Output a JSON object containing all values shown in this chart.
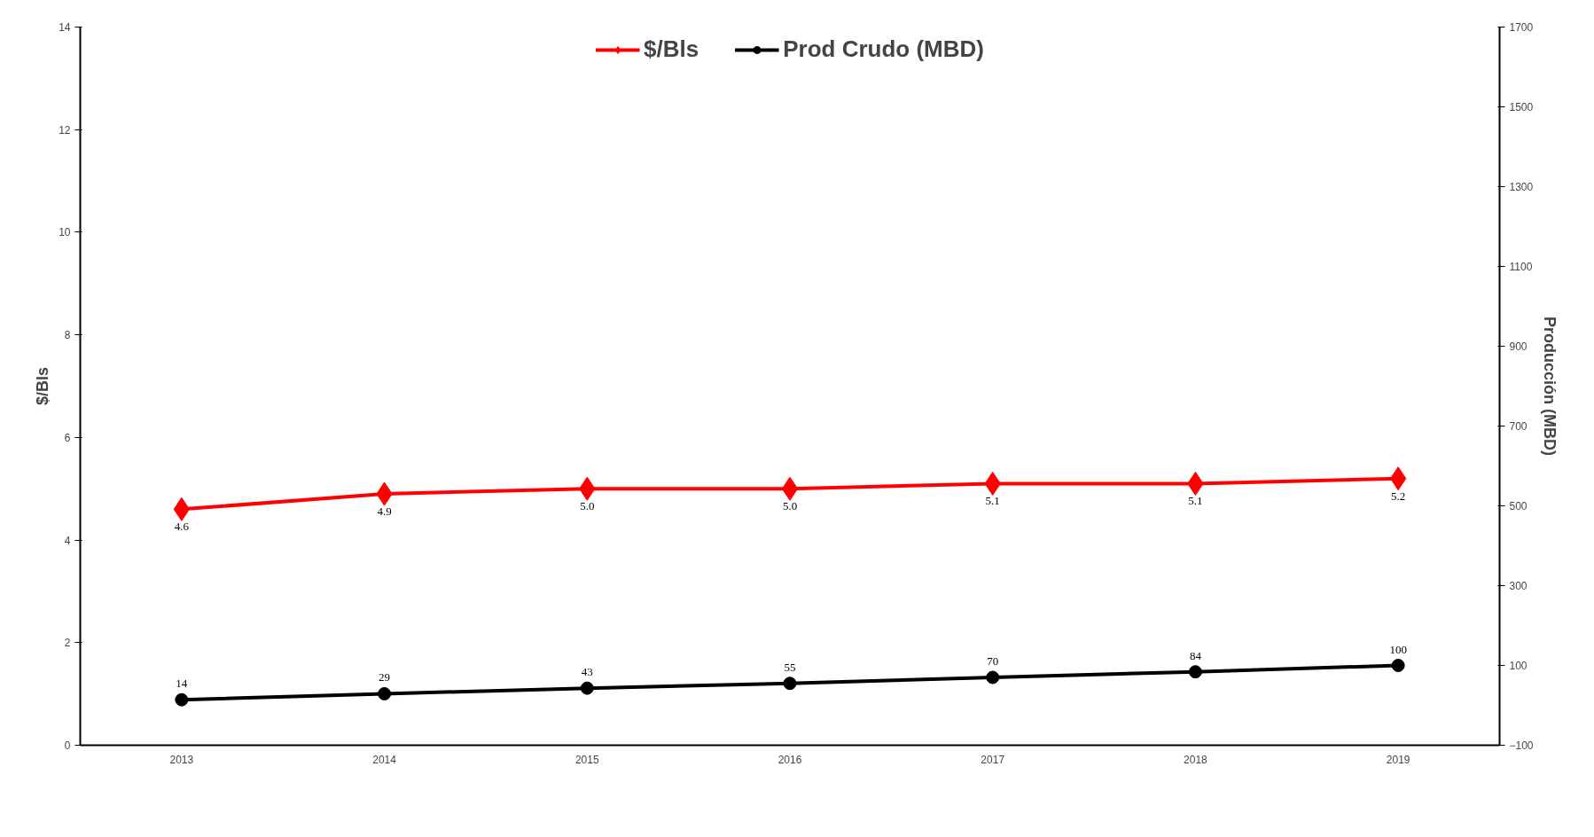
{
  "chart_data": {
    "type": "line",
    "ylabel": "$/Bls",
    "y2label": "Producción (MBD)",
    "categories": [
      "2013",
      "2014",
      "2015",
      "2016",
      "2017",
      "2018",
      "2019"
    ],
    "series": [
      {
        "name": "$/Bls",
        "color": "#ff0000",
        "marker": "diamond",
        "values": [
          4.6,
          4.9,
          5.0,
          5.0,
          5.1,
          5.1,
          5.2
        ],
        "value_labels": [
          "4.6",
          "4.9",
          "5.0",
          "5.0",
          "5.1",
          "5.1",
          "5.2"
        ]
      },
      {
        "name": "Prod Crudo (MBD)",
        "color": "#000000",
        "marker": "circle",
        "axis": "y2",
        "values": [
          14,
          29,
          43,
          55,
          70,
          84,
          100
        ],
        "value_labels": [
          "14",
          "29",
          "43",
          "55",
          "70",
          "84",
          "100"
        ]
      }
    ],
    "ylim": [
      0,
      14
    ],
    "yticks": [
      0,
      2,
      4,
      6,
      8,
      10,
      12,
      14
    ],
    "y2lim": [
      -100,
      1700
    ],
    "y2ticks": [
      -100,
      100,
      300,
      500,
      700,
      900,
      1100,
      1300,
      1500,
      1700
    ],
    "grid": false,
    "legend": "top",
    "line_style": "solid"
  }
}
